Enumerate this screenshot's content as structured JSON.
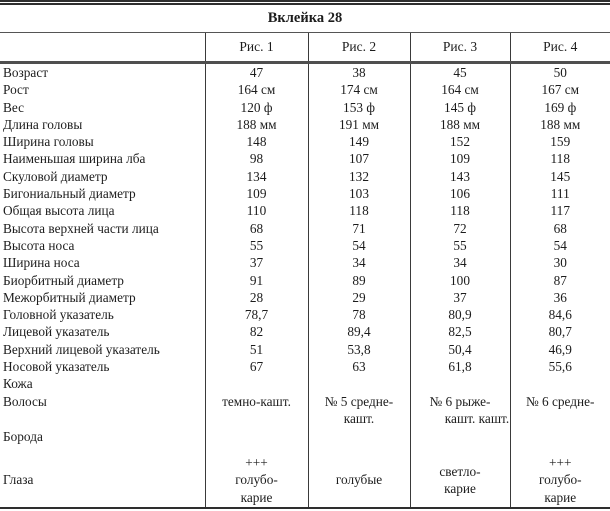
{
  "title": "Вклейка 28",
  "columns": [
    "Рис. 1",
    "Рис. 2",
    "Рис. 3",
    "Рис. 4"
  ],
  "rows": [
    {
      "label": "Возраст",
      "values": [
        "47",
        "38",
        "45",
        "50"
      ]
    },
    {
      "label": "Рост",
      "values": [
        "164 см",
        "174 см",
        "164 см",
        "167 см"
      ]
    },
    {
      "label": "Вес",
      "values": [
        "120 ф",
        "153 ф",
        "145 ф",
        "169 ф"
      ]
    },
    {
      "label": "Длина головы",
      "values": [
        "188 мм",
        "191 мм",
        "188 мм",
        "188 мм"
      ]
    },
    {
      "label": "Ширина головы",
      "values": [
        "148",
        "149",
        "152",
        "159"
      ]
    },
    {
      "label": "Наименьшая ширина лба",
      "values": [
        "98",
        "107",
        "109",
        "118"
      ]
    },
    {
      "label": "Скуловой диаметр",
      "values": [
        "134",
        "132",
        "143",
        "145"
      ]
    },
    {
      "label": "Бигониальный диаметр",
      "values": [
        "109",
        "103",
        "106",
        "111"
      ]
    },
    {
      "label": "Общая высота лица",
      "values": [
        "110",
        "118",
        "118",
        "117"
      ]
    },
    {
      "label": "Высота верхней части лица",
      "values": [
        "68",
        "71",
        "72",
        "68"
      ]
    },
    {
      "label": "Высота носа",
      "values": [
        "55",
        "54",
        "55",
        "54"
      ]
    },
    {
      "label": "Ширина носа",
      "values": [
        "37",
        "34",
        "34",
        "30"
      ]
    },
    {
      "label": "Биорбитный диаметр",
      "values": [
        "91",
        "89",
        "100",
        "87"
      ]
    },
    {
      "label": "Межорбитный диаметр",
      "values": [
        "28",
        "29",
        "37",
        "36"
      ]
    },
    {
      "label": "Головной указатель",
      "values": [
        "78,7",
        "78",
        "80,9",
        "84,6"
      ]
    },
    {
      "label": "Лицевой указатель",
      "values": [
        "82",
        "89,4",
        "82,5",
        "80,7"
      ]
    },
    {
      "label": "Верхний лицевой указатель",
      "values": [
        "51",
        "53,8",
        "50,4",
        "46,9"
      ]
    },
    {
      "label": "Носовой указатель",
      "values": [
        "67",
        "63",
        "61,8",
        "55,6"
      ]
    },
    {
      "label": "Кожа",
      "values": [
        "",
        "",
        "",
        ""
      ]
    },
    {
      "label": "Волосы",
      "values": [
        [
          "темно-кашт."
        ],
        [
          "№ 5 средне-",
          "кашт."
        ],
        [
          "№ 6 рыже-",
          "кашт. кашт."
        ],
        [
          "№ 6 средне-"
        ]
      ]
    },
    {
      "label": "Борода",
      "values": [
        "",
        "",
        "",
        ""
      ]
    },
    {
      "label": "Глаза",
      "values": [
        [
          "+++",
          "голубо-",
          "карие"
        ],
        [
          "голубые"
        ],
        [
          "светло-",
          "карие"
        ],
        [
          "+++",
          "голубо-",
          "карие"
        ]
      ]
    }
  ],
  "colors": {
    "text": "#1c1c1c",
    "rule": "#3a3a3a",
    "background": "#ffffff"
  }
}
